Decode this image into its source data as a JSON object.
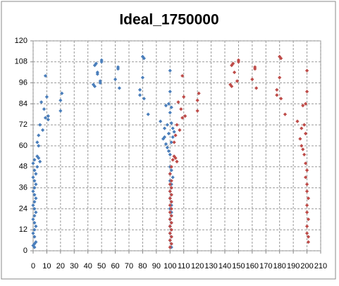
{
  "chart_data": {
    "type": "scatter",
    "title": "Ideal_1750000",
    "series": [
      {
        "color": "#4a7ebb",
        "x": [
          1,
          1,
          0,
          2,
          1,
          0,
          1,
          2,
          1,
          0,
          1,
          2,
          1,
          0,
          1,
          2,
          1,
          0,
          1,
          2,
          1,
          0,
          2,
          1,
          3,
          0,
          1,
          3,
          4,
          5,
          3,
          4,
          4,
          5,
          6,
          7,
          8,
          9,
          9,
          10,
          11,
          11,
          20,
          20,
          21,
          44,
          45,
          45,
          46,
          47,
          47,
          49,
          49,
          50,
          50,
          60,
          62,
          62,
          63,
          78,
          78,
          80,
          81,
          80,
          81,
          84,
          93,
          95,
          96,
          96,
          97,
          97,
          98,
          98,
          99,
          99,
          100,
          100,
          100,
          100,
          99,
          101,
          101,
          102,
          103,
          102,
          101,
          100,
          101,
          100,
          102,
          100,
          101,
          101,
          100,
          101,
          100,
          101,
          101,
          100,
          101,
          101,
          100,
          101,
          100,
          101,
          100,
          101,
          100,
          101,
          101
        ],
        "y": [
          2,
          4,
          3,
          5,
          8,
          10,
          12,
          14,
          16,
          18,
          20,
          22,
          24,
          26,
          28,
          30,
          32,
          34,
          36,
          38,
          40,
          42,
          44,
          46,
          48,
          50,
          52,
          54,
          53,
          51,
          62,
          66,
          60,
          72,
          85,
          69,
          81,
          76,
          100,
          88,
          77,
          75,
          80,
          86,
          90,
          95,
          94,
          106,
          107,
          102,
          101,
          97,
          96,
          109,
          108,
          98,
          104,
          105,
          93,
          89,
          92,
          111,
          110,
          99,
          87,
          78,
          74,
          64,
          65,
          70,
          61,
          83,
          59,
          72,
          84,
          57,
          91,
          103,
          55,
          79,
          67,
          82,
          73,
          70,
          68,
          65,
          62,
          48,
          46,
          44,
          42,
          40,
          38,
          36,
          34,
          32,
          30,
          28,
          26,
          24,
          22,
          20,
          18,
          16,
          14,
          12,
          10,
          8,
          6,
          4,
          2
        ]
      },
      {
        "color": "#be4b48",
        "x": [
          100,
          101,
          100,
          101,
          100,
          101,
          100,
          101,
          100,
          101,
          100,
          101,
          100,
          101,
          100,
          101,
          100,
          101,
          100,
          101,
          100,
          101,
          102,
          103,
          104,
          105,
          103,
          104,
          105,
          106,
          107,
          108,
          109,
          109,
          110,
          111,
          120,
          120,
          121,
          144,
          145,
          145,
          146,
          147,
          149,
          150,
          150,
          160,
          162,
          162,
          163,
          178,
          178,
          180,
          181,
          180,
          181,
          184,
          193,
          195,
          196,
          197,
          198,
          199,
          200,
          200,
          199,
          196,
          197,
          198,
          199,
          200,
          199,
          200,
          200,
          201,
          200,
          200,
          201,
          200,
          200,
          201,
          201
        ],
        "y": [
          2,
          4,
          6,
          8,
          10,
          12,
          14,
          16,
          18,
          20,
          22,
          24,
          26,
          28,
          30,
          32,
          34,
          36,
          38,
          40,
          44,
          48,
          52,
          54,
          53,
          51,
          62,
          66,
          72,
          85,
          69,
          81,
          76,
          100,
          88,
          77,
          80,
          86,
          90,
          95,
          94,
          106,
          107,
          102,
          97,
          109,
          108,
          98,
          104,
          105,
          93,
          89,
          92,
          111,
          110,
          99,
          87,
          78,
          74,
          64,
          70,
          83,
          72,
          84,
          91,
          103,
          67,
          60,
          58,
          55,
          50,
          46,
          42,
          38,
          34,
          30,
          26,
          22,
          18,
          14,
          10,
          8,
          5
        ]
      }
    ],
    "xlim": [
      0,
      210
    ],
    "xticks": [
      0,
      10,
      20,
      30,
      40,
      50,
      60,
      70,
      80,
      90,
      100,
      110,
      120,
      130,
      140,
      150,
      160,
      170,
      180,
      190,
      200,
      210
    ],
    "ylim": [
      0,
      120
    ],
    "yticks": [
      0,
      12,
      24,
      36,
      48,
      60,
      72,
      84,
      96,
      108,
      120
    ],
    "grid": true
  }
}
